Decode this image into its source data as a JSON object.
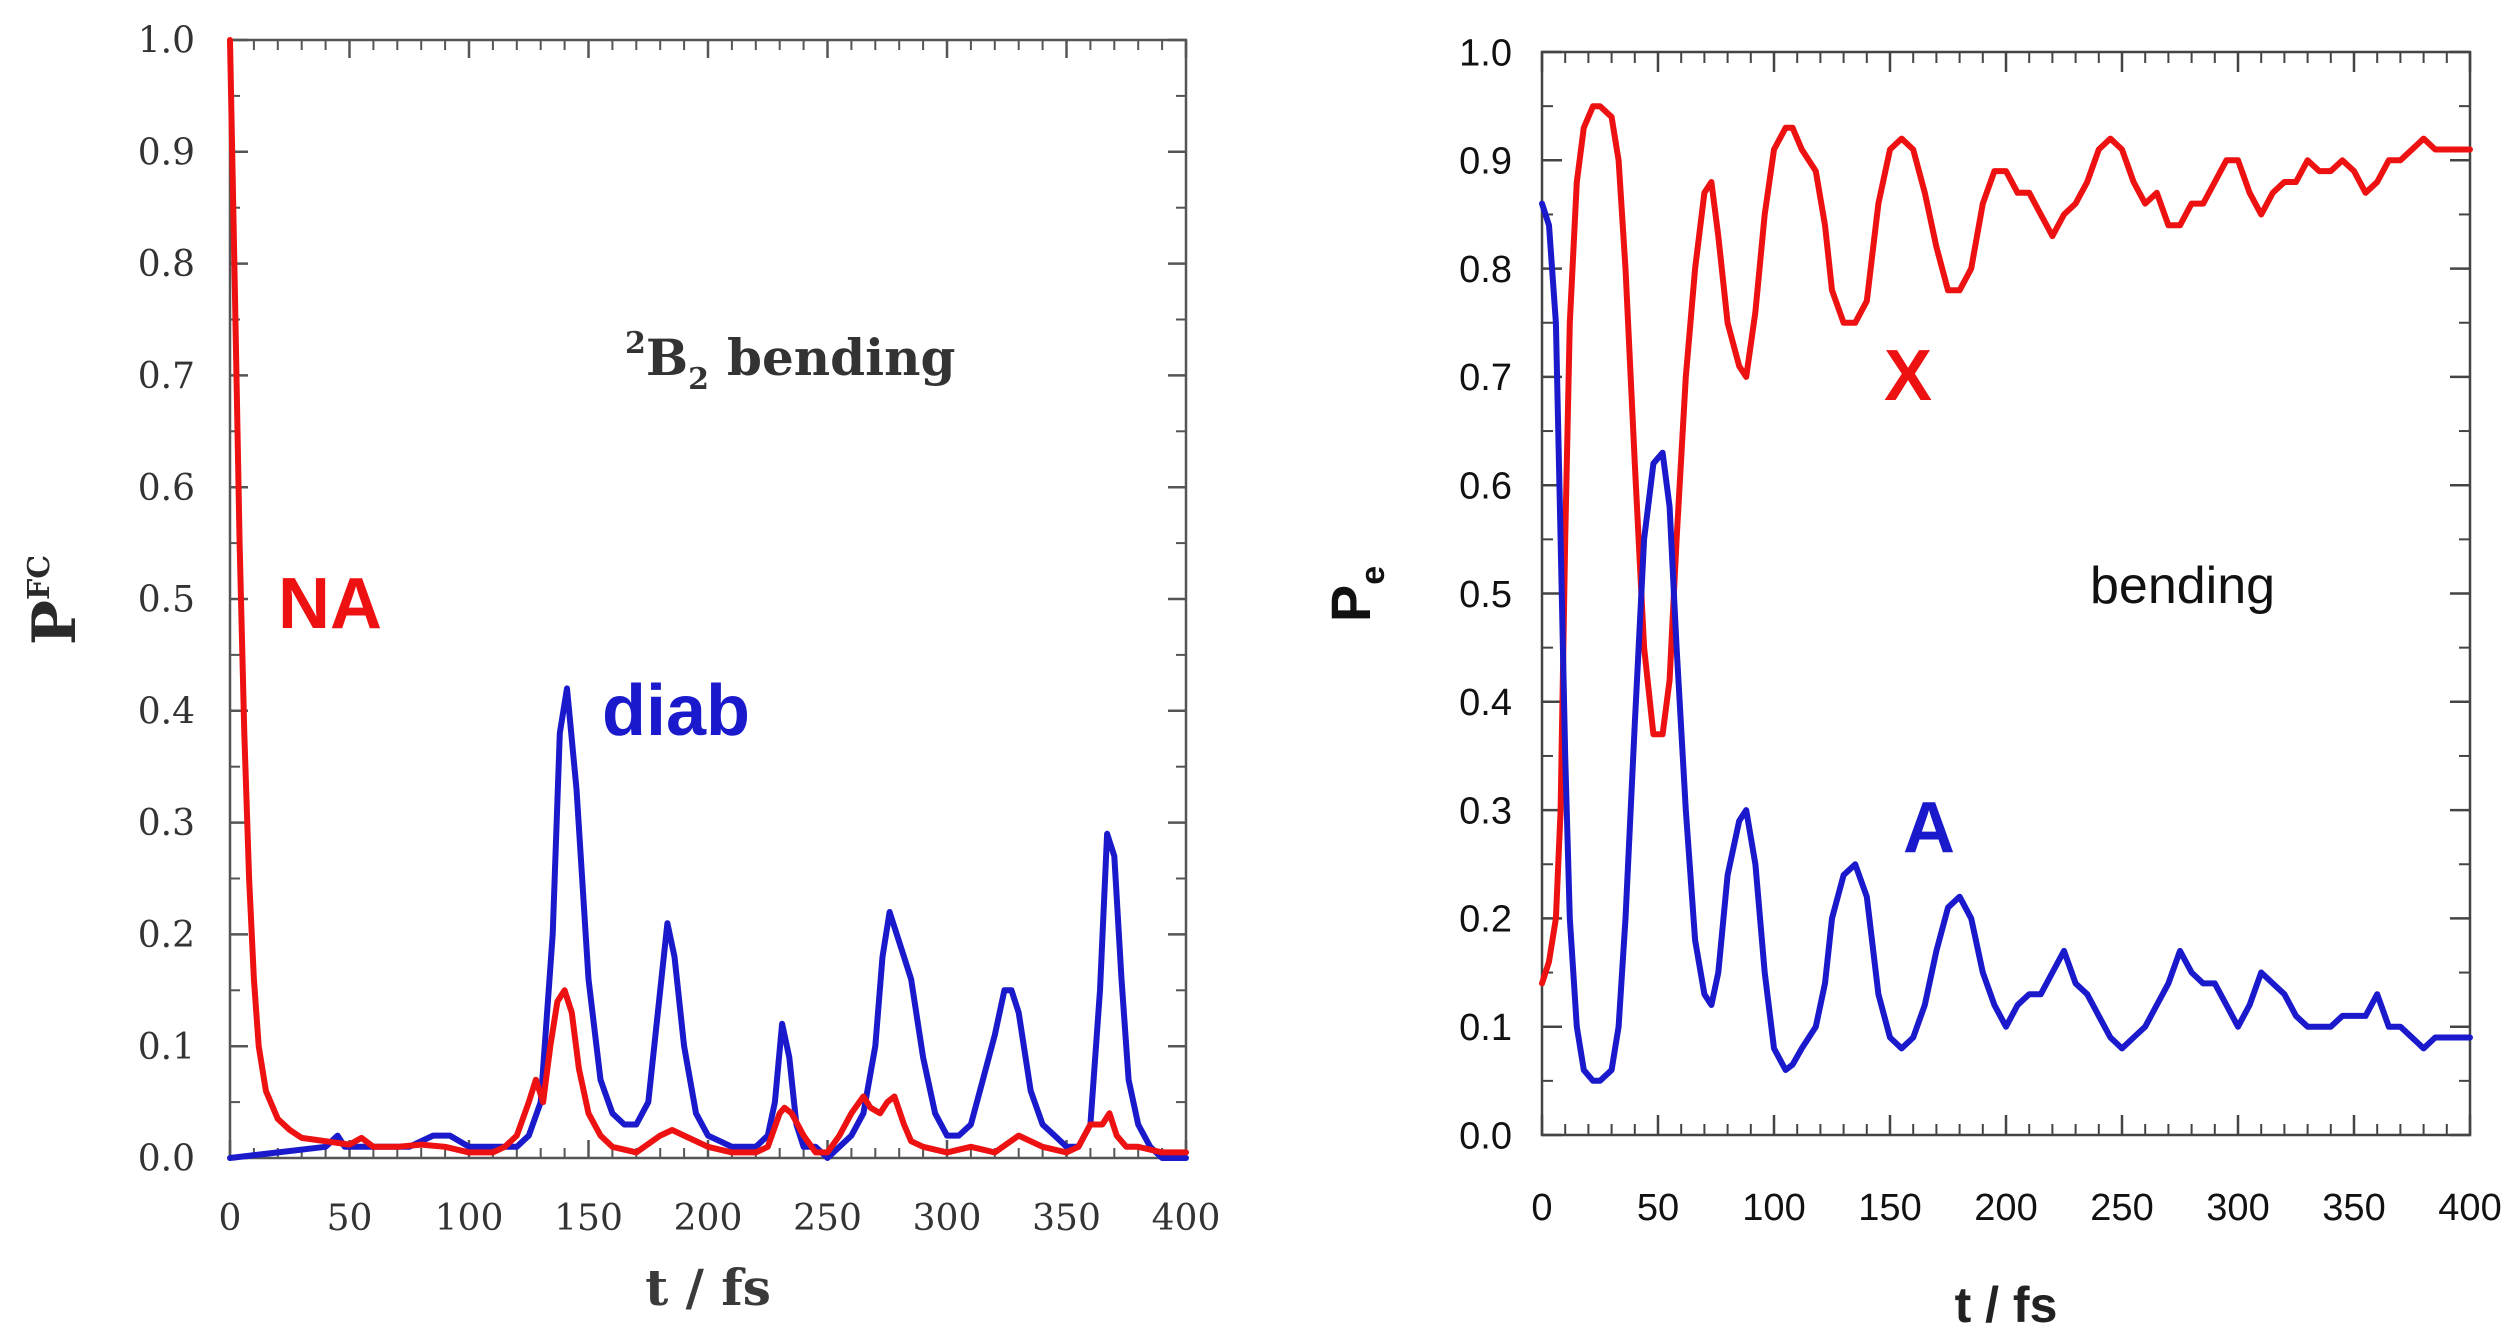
{
  "chart_data": [
    {
      "type": "line",
      "panel": "left",
      "title": "",
      "xlabel": "t / fs",
      "ylabel_main": "P",
      "ylabel_sup": "FC",
      "xlim": [
        0,
        400
      ],
      "ylim": [
        0,
        1.0
      ],
      "xticks": [
        "0",
        "50",
        "100",
        "150",
        "200",
        "250",
        "300",
        "350",
        "400"
      ],
      "yticks": [
        "0.0",
        "0.1",
        "0.2",
        "0.3",
        "0.4",
        "0.5",
        "0.6",
        "0.7",
        "0.8",
        "0.9",
        "1.0"
      ],
      "annotation": {
        "sup": "2",
        "main": "B",
        "sub": "2",
        "rest": "bending"
      },
      "series": [
        {
          "name": "diab",
          "color": "#1a1acc",
          "x": [
            0,
            40,
            45,
            48,
            60,
            75,
            85,
            92,
            100,
            110,
            120,
            125,
            130,
            135,
            138,
            141,
            145,
            150,
            155,
            160,
            165,
            170,
            175,
            180,
            183,
            186,
            190,
            195,
            200,
            210,
            220,
            225,
            228,
            231,
            234,
            237,
            240,
            245,
            250,
            255,
            260,
            265,
            270,
            273,
            276,
            279,
            282,
            285,
            290,
            295,
            300,
            305,
            310,
            315,
            320,
            324,
            327,
            330,
            335,
            340,
            345,
            350,
            355,
            360,
            364,
            367,
            370,
            373,
            376,
            380,
            385,
            390,
            400
          ],
          "y": [
            0.0,
            0.01,
            0.02,
            0.01,
            0.01,
            0.01,
            0.02,
            0.02,
            0.01,
            0.01,
            0.01,
            0.02,
            0.05,
            0.2,
            0.38,
            0.42,
            0.33,
            0.16,
            0.07,
            0.04,
            0.03,
            0.03,
            0.05,
            0.15,
            0.21,
            0.18,
            0.1,
            0.04,
            0.02,
            0.01,
            0.01,
            0.02,
            0.05,
            0.12,
            0.09,
            0.03,
            0.01,
            0.01,
            0.0,
            0.01,
            0.02,
            0.04,
            0.1,
            0.18,
            0.22,
            0.2,
            0.18,
            0.16,
            0.09,
            0.04,
            0.02,
            0.02,
            0.03,
            0.07,
            0.11,
            0.15,
            0.15,
            0.13,
            0.06,
            0.03,
            0.02,
            0.01,
            0.01,
            0.03,
            0.15,
            0.29,
            0.27,
            0.16,
            0.07,
            0.03,
            0.01,
            0.0,
            0.0
          ]
        },
        {
          "name": "NA",
          "color": "#ee1111",
          "x": [
            0,
            2,
            4,
            6,
            8,
            10,
            12,
            15,
            20,
            25,
            30,
            40,
            50,
            55,
            60,
            70,
            80,
            90,
            100,
            110,
            115,
            120,
            125,
            128,
            131,
            134,
            137,
            140,
            143,
            146,
            150,
            155,
            160,
            170,
            180,
            185,
            190,
            200,
            210,
            220,
            225,
            230,
            232,
            235,
            240,
            245,
            250,
            255,
            260,
            265,
            268,
            272,
            275,
            278,
            282,
            285,
            290,
            300,
            310,
            320,
            330,
            340,
            350,
            355,
            360,
            365,
            368,
            371,
            375,
            380,
            390,
            400
          ],
          "y": [
            1.0,
            0.78,
            0.55,
            0.38,
            0.25,
            0.16,
            0.1,
            0.06,
            0.035,
            0.025,
            0.018,
            0.015,
            0.012,
            0.018,
            0.01,
            0.01,
            0.012,
            0.01,
            0.005,
            0.005,
            0.01,
            0.02,
            0.05,
            0.07,
            0.05,
            0.1,
            0.14,
            0.15,
            0.13,
            0.08,
            0.04,
            0.02,
            0.01,
            0.005,
            0.02,
            0.025,
            0.02,
            0.01,
            0.005,
            0.005,
            0.01,
            0.04,
            0.045,
            0.04,
            0.02,
            0.005,
            0.005,
            0.02,
            0.04,
            0.055,
            0.045,
            0.04,
            0.05,
            0.055,
            0.03,
            0.015,
            0.01,
            0.005,
            0.01,
            0.005,
            0.02,
            0.01,
            0.005,
            0.01,
            0.03,
            0.03,
            0.04,
            0.02,
            0.01,
            0.01,
            0.005,
            0.005
          ]
        }
      ],
      "labels": [
        {
          "text": "NA",
          "color": "#ee1111"
        },
        {
          "text": "diab",
          "color": "#1a1acc"
        }
      ]
    },
    {
      "type": "line",
      "panel": "right",
      "title": "",
      "xlabel": "t / fs",
      "ylabel_main": "P",
      "ylabel_sub": "e",
      "xlim": [
        0,
        400
      ],
      "ylim": [
        0,
        1.0
      ],
      "xticks": [
        "0",
        "50",
        "100",
        "150",
        "200",
        "250",
        "300",
        "350",
        "400"
      ],
      "yticks": [
        "0.0",
        "0.1",
        "0.2",
        "0.3",
        "0.4",
        "0.5",
        "0.6",
        "0.7",
        "0.8",
        "0.9",
        "1.0"
      ],
      "annotation": {
        "text": "bending"
      },
      "series": [
        {
          "name": "X",
          "color": "#ee1111",
          "x": [
            0,
            3,
            6,
            8,
            10,
            12,
            15,
            18,
            22,
            25,
            30,
            33,
            36,
            40,
            44,
            48,
            52,
            55,
            58,
            62,
            66,
            70,
            73,
            76,
            80,
            85,
            88,
            92,
            96,
            100,
            105,
            108,
            112,
            118,
            122,
            125,
            130,
            135,
            140,
            145,
            150,
            155,
            160,
            165,
            170,
            175,
            180,
            185,
            190,
            195,
            200,
            205,
            210,
            215,
            220,
            225,
            230,
            235,
            240,
            245,
            250,
            255,
            260,
            265,
            270,
            275,
            280,
            285,
            290,
            295,
            300,
            305,
            310,
            315,
            320,
            325,
            330,
            335,
            340,
            345,
            350,
            355,
            360,
            365,
            370,
            375,
            380,
            385,
            390,
            395,
            400
          ],
          "y": [
            0.14,
            0.16,
            0.2,
            0.3,
            0.55,
            0.75,
            0.88,
            0.93,
            0.95,
            0.95,
            0.94,
            0.9,
            0.8,
            0.62,
            0.45,
            0.37,
            0.37,
            0.42,
            0.55,
            0.7,
            0.8,
            0.87,
            0.88,
            0.83,
            0.75,
            0.71,
            0.7,
            0.76,
            0.85,
            0.91,
            0.93,
            0.93,
            0.91,
            0.89,
            0.84,
            0.78,
            0.75,
            0.75,
            0.77,
            0.86,
            0.91,
            0.92,
            0.91,
            0.87,
            0.82,
            0.78,
            0.78,
            0.8,
            0.86,
            0.89,
            0.89,
            0.87,
            0.87,
            0.85,
            0.83,
            0.85,
            0.86,
            0.88,
            0.91,
            0.92,
            0.91,
            0.88,
            0.86,
            0.87,
            0.84,
            0.84,
            0.86,
            0.86,
            0.88,
            0.9,
            0.9,
            0.87,
            0.85,
            0.87,
            0.88,
            0.88,
            0.9,
            0.89,
            0.89,
            0.9,
            0.89,
            0.87,
            0.88,
            0.9,
            0.9,
            0.91,
            0.92,
            0.91,
            0.91,
            0.91,
            0.91
          ]
        },
        {
          "name": "A",
          "color": "#1a1acc",
          "x": [
            0,
            3,
            6,
            8,
            10,
            12,
            15,
            18,
            22,
            25,
            30,
            33,
            36,
            40,
            44,
            48,
            52,
            55,
            58,
            62,
            66,
            70,
            73,
            76,
            80,
            85,
            88,
            92,
            96,
            100,
            105,
            108,
            112,
            118,
            122,
            125,
            130,
            135,
            140,
            145,
            150,
            155,
            160,
            165,
            170,
            175,
            180,
            185,
            190,
            195,
            200,
            205,
            210,
            215,
            220,
            225,
            230,
            235,
            240,
            245,
            250,
            255,
            260,
            265,
            270,
            275,
            280,
            285,
            290,
            295,
            300,
            305,
            310,
            315,
            320,
            325,
            330,
            335,
            340,
            345,
            350,
            355,
            360,
            365,
            370,
            375,
            380,
            385,
            390,
            395,
            400
          ],
          "y": [
            0.86,
            0.84,
            0.75,
            0.55,
            0.35,
            0.2,
            0.1,
            0.06,
            0.05,
            0.05,
            0.06,
            0.1,
            0.2,
            0.38,
            0.55,
            0.62,
            0.63,
            0.58,
            0.45,
            0.3,
            0.18,
            0.13,
            0.12,
            0.15,
            0.24,
            0.29,
            0.3,
            0.25,
            0.15,
            0.08,
            0.06,
            0.065,
            0.08,
            0.1,
            0.14,
            0.2,
            0.24,
            0.25,
            0.22,
            0.13,
            0.09,
            0.08,
            0.09,
            0.12,
            0.17,
            0.21,
            0.22,
            0.2,
            0.15,
            0.12,
            0.1,
            0.12,
            0.13,
            0.13,
            0.15,
            0.17,
            0.14,
            0.13,
            0.11,
            0.09,
            0.08,
            0.09,
            0.1,
            0.12,
            0.14,
            0.17,
            0.15,
            0.14,
            0.14,
            0.12,
            0.1,
            0.12,
            0.15,
            0.14,
            0.13,
            0.11,
            0.1,
            0.1,
            0.1,
            0.11,
            0.11,
            0.11,
            0.13,
            0.1,
            0.1,
            0.09,
            0.08,
            0.09,
            0.09,
            0.09,
            0.09
          ]
        }
      ],
      "labels": [
        {
          "text": "X",
          "color": "#ee1111"
        },
        {
          "text": "A",
          "color": "#1a1acc"
        }
      ]
    }
  ]
}
